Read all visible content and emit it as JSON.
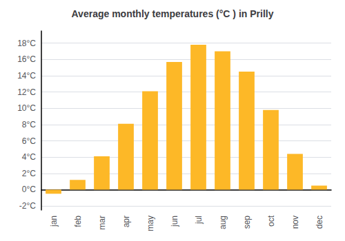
{
  "chart_data": {
    "type": "bar",
    "title": "Average monthly temperatures (°C ) in Prilly",
    "categories": [
      "jan",
      "feb",
      "mar",
      "apr",
      "may",
      "jun",
      "jul",
      "aug",
      "sep",
      "oct",
      "nov",
      "dec"
    ],
    "values": [
      -0.5,
      1.2,
      4.1,
      8.1,
      12.1,
      15.7,
      17.8,
      17.0,
      14.5,
      9.8,
      4.4,
      0.5
    ],
    "color": "#FDB827",
    "ylim": [
      -2.5,
      19.5
    ],
    "yticks": [
      {
        "value": -2,
        "label": "-2°C"
      },
      {
        "value": 0,
        "label": "0°C"
      },
      {
        "value": 2,
        "label": "2°C"
      },
      {
        "value": 4,
        "label": "4°C"
      },
      {
        "value": 6,
        "label": "6°C"
      },
      {
        "value": 8,
        "label": "8°C"
      },
      {
        "value": 10,
        "label": "10°C"
      },
      {
        "value": 12,
        "label": "12°C"
      },
      {
        "value": 14,
        "label": "14°C"
      },
      {
        "value": 16,
        "label": "16°C"
      },
      {
        "value": 18,
        "label": "18°C"
      }
    ],
    "grid": true
  }
}
